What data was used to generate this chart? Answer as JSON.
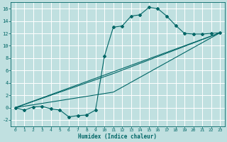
{
  "xlabel": "Humidex (Indice chaleur)",
  "background_color": "#c0e0e0",
  "line_color": "#006666",
  "grid_color": "#ffffff",
  "xlim": [
    -0.5,
    23.5
  ],
  "ylim": [
    -3.0,
    17.0
  ],
  "xticks": [
    0,
    1,
    2,
    3,
    4,
    5,
    6,
    7,
    8,
    9,
    10,
    11,
    12,
    13,
    14,
    15,
    16,
    17,
    18,
    19,
    20,
    21,
    22,
    23
  ],
  "yticks": [
    -2,
    0,
    2,
    4,
    6,
    8,
    10,
    12,
    14,
    16
  ],
  "curve1_x": [
    0,
    1,
    2,
    3,
    4,
    5,
    6,
    7,
    8,
    9,
    10,
    11,
    12,
    13,
    14,
    15,
    16,
    17,
    18,
    19,
    20,
    21,
    22,
    23
  ],
  "curve1_y": [
    0,
    -0.4,
    0.1,
    0.2,
    -0.2,
    -0.4,
    -1.5,
    -1.3,
    -1.2,
    -0.4,
    8.3,
    13.0,
    13.2,
    14.8,
    15.0,
    16.2,
    16.0,
    14.8,
    13.3,
    12.0,
    11.9,
    11.9,
    12.0,
    12.1
  ],
  "line2_x": [
    0,
    23
  ],
  "line2_y": [
    0,
    12.1
  ],
  "line3_x": [
    0,
    11,
    23
  ],
  "line3_y": [
    0,
    5.5,
    12.1
  ],
  "line4_x": [
    0,
    11,
    23
  ],
  "line4_y": [
    0,
    2.5,
    12.1
  ]
}
